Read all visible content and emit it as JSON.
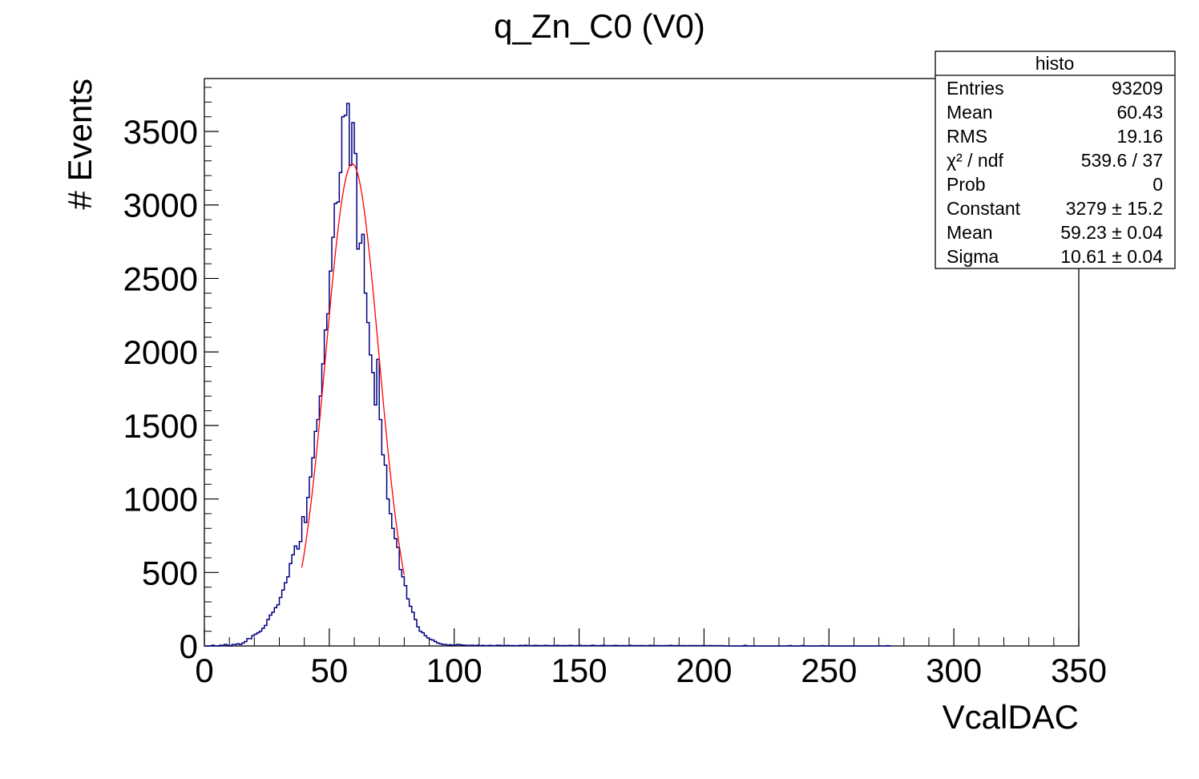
{
  "chart_data": {
    "type": "histogram",
    "title": "q_Zn_C0 (V0)",
    "xlabel": "VcalDAC",
    "ylabel": "# Events",
    "xlim": [
      0,
      350
    ],
    "ylim": [
      0,
      3860
    ],
    "x_ticks": [
      "0",
      "50",
      "100",
      "150",
      "200",
      "250",
      "300",
      "350"
    ],
    "y_ticks": [
      "0",
      "500",
      "1000",
      "1500",
      "2000",
      "2500",
      "3000",
      "3500"
    ],
    "x_tick_values": [
      0,
      50,
      100,
      150,
      200,
      250,
      300,
      350
    ],
    "y_tick_values": [
      0,
      500,
      1000,
      1500,
      2000,
      2500,
      3000,
      3500
    ],
    "grid": false,
    "bin_width": 1,
    "histogram": {
      "name": "histo",
      "color": "#000080",
      "x_start": 0,
      "values": [
        0,
        0,
        0,
        5,
        0,
        0,
        5,
        5,
        10,
        5,
        0,
        10,
        10,
        15,
        10,
        20,
        30,
        50,
        50,
        70,
        80,
        90,
        100,
        120,
        140,
        180,
        210,
        230,
        260,
        280,
        330,
        380,
        430,
        470,
        560,
        620,
        680,
        660,
        710,
        880,
        840,
        1010,
        1150,
        1280,
        1460,
        1540,
        1700,
        1920,
        2150,
        2260,
        2550,
        2780,
        3010,
        3020,
        3220,
        3600,
        3610,
        3690,
        3270,
        3560,
        3350,
        2700,
        2740,
        2800,
        2400,
        2200,
        1980,
        1860,
        1640,
        1950,
        1540,
        1300,
        1230,
        1000,
        900,
        800,
        730,
        670,
        520,
        470,
        410,
        320,
        270,
        230,
        180,
        130,
        100,
        90,
        70,
        55,
        45,
        40,
        30,
        20,
        15,
        10,
        10,
        5,
        8,
        5,
        6,
        10,
        8,
        6,
        5,
        4,
        4,
        5,
        3,
        5,
        3,
        4,
        2,
        3,
        4,
        2,
        3,
        5,
        4,
        3,
        3,
        4,
        2,
        3,
        2,
        2,
        4,
        3,
        5,
        3,
        2,
        3,
        4,
        3,
        3,
        2,
        4,
        3,
        2,
        3,
        3,
        4,
        2,
        3,
        3,
        2,
        4,
        3,
        2,
        3,
        4,
        2,
        3,
        2,
        3,
        5,
        3,
        2,
        3,
        4,
        3,
        2,
        3,
        2,
        4,
        3,
        2,
        3,
        3,
        2,
        4,
        2,
        3,
        2,
        3,
        3,
        2,
        2,
        4,
        3,
        2,
        3,
        2,
        2,
        3,
        2,
        4,
        3,
        2,
        3,
        2,
        3,
        2,
        2,
        3,
        2,
        3,
        2,
        2,
        3,
        2,
        2,
        3,
        2,
        2,
        2,
        2,
        2,
        0,
        0,
        0,
        0,
        0,
        0,
        0,
        0,
        4,
        0,
        0,
        0,
        0,
        0,
        0,
        0,
        0,
        0,
        0,
        0,
        0,
        0,
        0,
        0,
        0,
        0,
        3,
        0,
        0,
        0,
        0,
        3,
        0,
        0,
        0,
        0,
        0,
        0,
        0,
        2,
        0,
        0,
        0,
        0,
        0,
        0,
        0,
        0,
        0,
        0,
        0,
        0,
        0,
        0,
        0,
        0,
        0,
        0,
        0,
        0,
        0,
        0,
        0,
        0,
        0,
        2,
        0
      ]
    },
    "fit": {
      "type": "gaus",
      "color": "#ff0000",
      "constant": 3279,
      "mean": 59.23,
      "sigma": 10.61,
      "range": [
        39,
        80
      ]
    },
    "stats_box": {
      "title": "histo",
      "position": "top-right",
      "rows": [
        {
          "label": "Entries",
          "value": "93209"
        },
        {
          "label": "Mean",
          "value": "60.43"
        },
        {
          "label": "RMS",
          "value": "19.16"
        },
        {
          "label": "χ² / ndf",
          "value": "539.6 / 37"
        },
        {
          "label": "Prob",
          "value": "0"
        },
        {
          "label": "Constant",
          "value": "3279 ± 15.2"
        },
        {
          "label": "Mean",
          "value": "59.23 ± 0.04"
        },
        {
          "label": "Sigma",
          "value": "10.61 ± 0.04"
        }
      ]
    }
  }
}
